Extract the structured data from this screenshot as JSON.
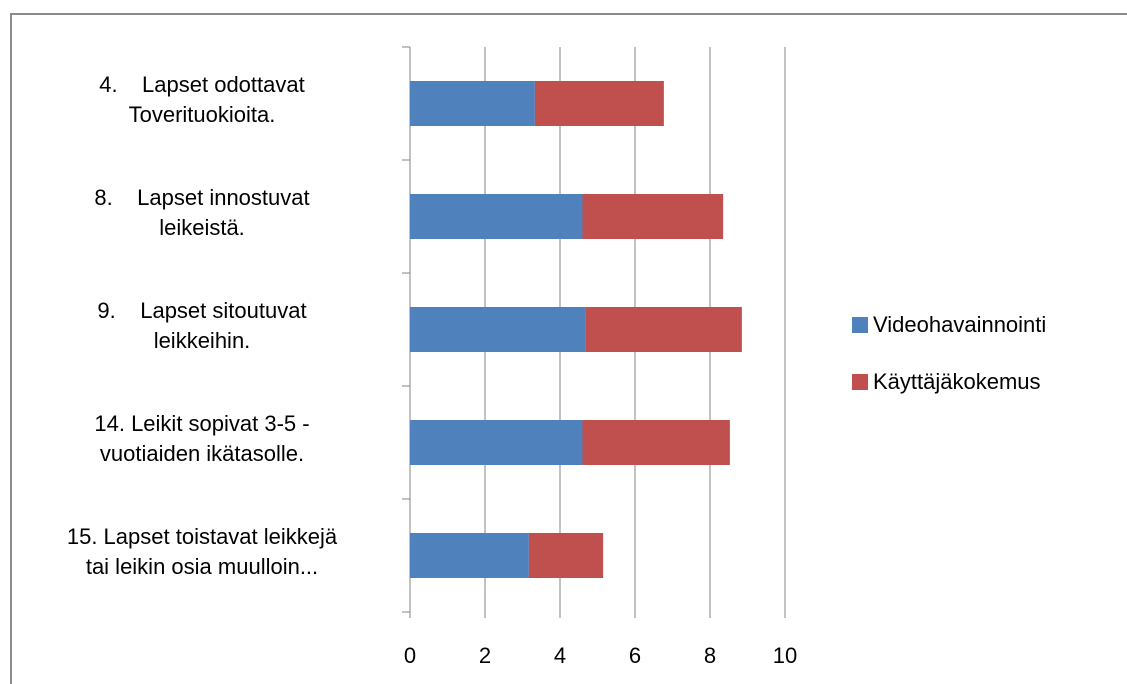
{
  "chart_data": {
    "type": "stacked_barh",
    "categories": [
      "4.    Lapset odottavat\nToverituokioita.",
      "8.    Lapset innostuvat\nleikeistä.",
      "9.    Lapset sitoutuvat\nleikkeihin.",
      "14. Leikit sopivat 3-5 -\nvuotiaiden ikätasolle.",
      "15. Lapset toistavat leikkejä\ntai leikin osia muulloin..."
    ],
    "series": [
      {
        "name": "Videohavainnointi",
        "color": "#4f81bd",
        "values": [
          3.33,
          4.6,
          4.67,
          4.6,
          3.17
        ]
      },
      {
        "name": "Käyttäjäkokemus",
        "color": "#c0504d",
        "values": [
          3.44,
          3.75,
          4.18,
          3.93,
          1.98
        ]
      }
    ],
    "xlim": [
      0,
      10
    ],
    "xticks": [
      0,
      2,
      4,
      6,
      8,
      10
    ],
    "grid": true,
    "legend": "right"
  }
}
